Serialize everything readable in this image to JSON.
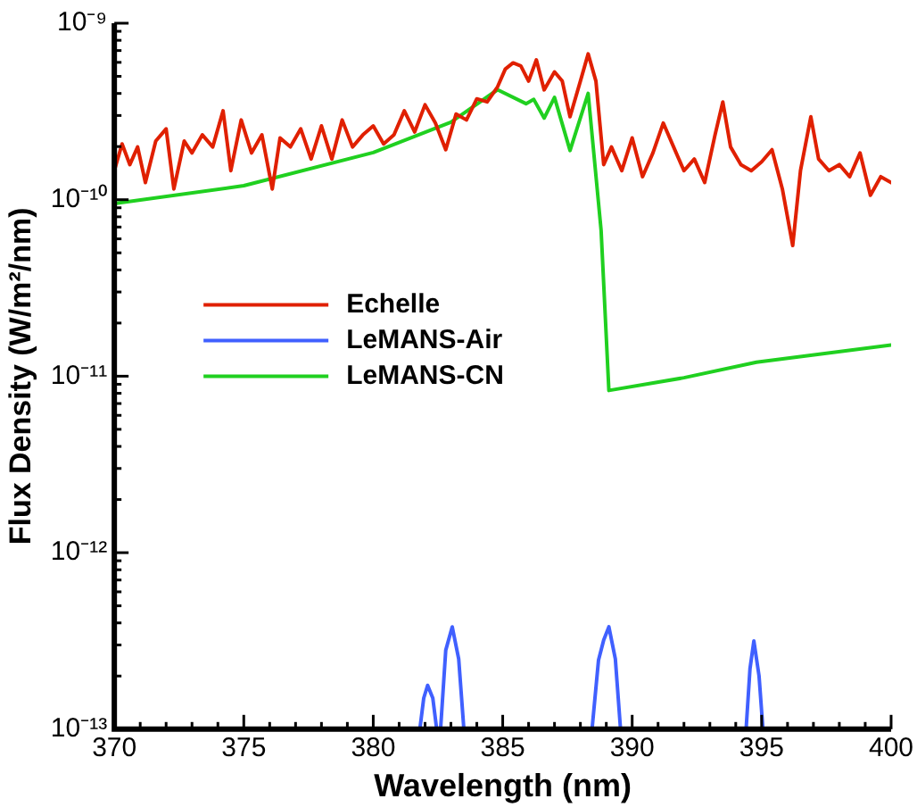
{
  "chart_data": {
    "type": "line",
    "xlabel": "Wavelength (nm)",
    "ylabel": "Flux Density (W/m²/nm)",
    "log": "y",
    "grid": false,
    "legend": "center left",
    "marker": "none",
    "line_style": "solid",
    "xlim": [
      370,
      400
    ],
    "xticks": [
      370,
      {
        "value": 371,
        "label": null
      },
      {
        "value": 372,
        "label": null
      },
      {
        "value": 373,
        "label": null
      },
      {
        "value": 374,
        "label": null
      },
      375,
      {
        "value": 376,
        "label": null
      },
      {
        "value": 377,
        "label": null
      },
      {
        "value": 378,
        "label": null
      },
      {
        "value": 379,
        "label": null
      },
      380,
      {
        "value": 381,
        "label": null
      },
      {
        "value": 382,
        "label": null
      },
      {
        "value": 383,
        "label": null
      },
      {
        "value": 384,
        "label": null
      },
      385,
      {
        "value": 386,
        "label": null
      },
      {
        "value": 387,
        "label": null
      },
      {
        "value": 388,
        "label": null
      },
      {
        "value": 389,
        "label": null
      },
      390,
      {
        "value": 391,
        "label": null
      },
      {
        "value": 392,
        "label": null
      },
      {
        "value": 393,
        "label": null
      },
      {
        "value": 394,
        "label": null
      },
      395,
      {
        "value": 396,
        "label": null
      },
      {
        "value": 397,
        "label": null
      },
      {
        "value": 398,
        "label": null
      },
      {
        "value": 399,
        "label": null
      },
      400
    ],
    "ylim": [
      1e-13,
      1e-09
    ],
    "yticks": [
      {
        "value": 1e-13,
        "label": "10⁻¹³"
      },
      {
        "value": 2e-13,
        "label": null
      },
      {
        "value": 3e-13,
        "label": null
      },
      {
        "value": 4e-13,
        "label": null
      },
      {
        "value": 5e-13,
        "label": null
      },
      {
        "value": 6e-13,
        "label": null
      },
      {
        "value": 7e-13,
        "label": null
      },
      {
        "value": 8e-13,
        "label": null
      },
      {
        "value": 9e-13,
        "label": null
      },
      {
        "value": 1e-12,
        "label": "10⁻¹²"
      },
      {
        "value": 2e-12,
        "label": null
      },
      {
        "value": 3e-12,
        "label": null
      },
      {
        "value": 4e-12,
        "label": null
      },
      {
        "value": 5e-12,
        "label": null
      },
      {
        "value": 6e-12,
        "label": null
      },
      {
        "value": 7e-12,
        "label": null
      },
      {
        "value": 8e-12,
        "label": null
      },
      {
        "value": 9e-12,
        "label": null
      },
      {
        "value": 1e-11,
        "label": "10⁻¹¹"
      },
      {
        "value": 2e-11,
        "label": null
      },
      {
        "value": 3e-11,
        "label": null
      },
      {
        "value": 4e-11,
        "label": null
      },
      {
        "value": 5e-11,
        "label": null
      },
      {
        "value": 6e-11,
        "label": null
      },
      {
        "value": 7e-11,
        "label": null
      },
      {
        "value": 8e-11,
        "label": null
      },
      {
        "value": 9e-11,
        "label": null
      },
      {
        "value": 1e-10,
        "label": "10⁻¹⁰"
      },
      {
        "value": 2e-10,
        "label": null
      },
      {
        "value": 3e-10,
        "label": null
      },
      {
        "value": 4e-10,
        "label": null
      },
      {
        "value": 5e-10,
        "label": null
      },
      {
        "value": 6e-10,
        "label": null
      },
      {
        "value": 7e-10,
        "label": null
      },
      {
        "value": 8e-10,
        "label": null
      },
      {
        "value": 9e-10,
        "label": null
      },
      {
        "value": 1e-09,
        "label": "10⁻⁹"
      }
    ],
    "series": [
      {
        "name": "Echelle",
        "color": "#e02000",
        "x": [
          370,
          370.3,
          370.6,
          370.9,
          371.2,
          371.6,
          372,
          372.3,
          372.7,
          373,
          373.4,
          373.8,
          374.2,
          374.5,
          374.9,
          375.3,
          375.7,
          376.1,
          376.4,
          376.8,
          377.2,
          377.6,
          378,
          378.4,
          378.8,
          379.2,
          379.6,
          380,
          380.4,
          380.8,
          381.2,
          381.6,
          382,
          382.4,
          382.8,
          383.2,
          383.6,
          384,
          384.4,
          384.8,
          385.1,
          385.4,
          385.7,
          386,
          386.3,
          386.6,
          387,
          387.3,
          387.6,
          388,
          388.3,
          388.6,
          388.9,
          389.2,
          389.6,
          390,
          390.4,
          390.8,
          391.2,
          391.6,
          392,
          392.4,
          392.8,
          393.2,
          393.5,
          393.8,
          394.2,
          394.6,
          395,
          395.4,
          395.8,
          396.2,
          396.5,
          396.9,
          397.2,
          397.6,
          398,
          398.4,
          398.8,
          399.2,
          399.6,
          400
        ],
        "values": [
          1.46e-10,
          2.07e-10,
          1.58e-10,
          1.99e-10,
          1.25e-10,
          2.15e-10,
          2.52e-10,
          1.15e-10,
          2.15e-10,
          1.84e-10,
          2.33e-10,
          1.99e-10,
          3.19e-10,
          1.46e-10,
          2.83e-10,
          1.84e-10,
          2.33e-10,
          1.15e-10,
          2.24e-10,
          1.99e-10,
          2.52e-10,
          1.7e-10,
          2.62e-10,
          1.7e-10,
          2.83e-10,
          1.99e-10,
          2.33e-10,
          2.62e-10,
          2.07e-10,
          2.33e-10,
          3.19e-10,
          2.42e-10,
          3.45e-10,
          2.72e-10,
          1.92e-10,
          3.06e-10,
          2.83e-10,
          3.73e-10,
          3.58e-10,
          4.36e-10,
          5.5e-10,
          5.96e-10,
          5.73e-10,
          4.7e-10,
          6.2e-10,
          4.19e-10,
          5.3e-10,
          4.7e-10,
          2.95e-10,
          4.7e-10,
          6.7e-10,
          4.7e-10,
          1.58e-10,
          1.99e-10,
          1.46e-10,
          2.24e-10,
          1.35e-10,
          1.84e-10,
          2.72e-10,
          1.99e-10,
          1.46e-10,
          1.7e-10,
          1.25e-10,
          2.33e-10,
          3.58e-10,
          1.99e-10,
          1.58e-10,
          1.46e-10,
          1.64e-10,
          1.92e-10,
          1.15e-10,
          5.5e-11,
          1.46e-10,
          2.95e-10,
          1.7e-10,
          1.46e-10,
          1.58e-10,
          1.35e-10,
          1.84e-10,
          1.06e-10,
          1.35e-10,
          1.25e-10
        ]
      },
      {
        "name": "LeMANS-Air",
        "color": "#4060ff",
        "x": [
          381.8,
          381.95,
          382.1,
          382.3,
          382.45,
          382.52,
          382.6,
          382.8,
          383.05,
          383.3,
          383.5,
          385,
          388.45,
          388.7,
          388.9,
          389.1,
          389.35,
          389.55,
          392,
          394.4,
          394.55,
          394.7,
          394.9,
          395.05
        ],
        "values": [
          1e-13,
          1.5e-13,
          1.77e-13,
          1.5e-13,
          1e-13,
          null,
          1e-13,
          2.8e-13,
          3.8e-13,
          2.5e-13,
          1e-13,
          null,
          1e-13,
          2.46e-13,
          3.2e-13,
          3.8e-13,
          2.5e-13,
          1e-13,
          null,
          1e-13,
          2.2e-13,
          3.16e-13,
          2e-13,
          1e-13
        ]
      },
      {
        "name": "LeMANS-CN",
        "color": "#20d020",
        "x": [
          370,
          375,
          380,
          383,
          384.8,
          385.9,
          386.2,
          386.6,
          387,
          387.6,
          388.3,
          388.8,
          389.1,
          392,
          394.8,
          400
        ],
        "values": [
          9.5e-11,
          1.2e-10,
          1.85e-10,
          2.75e-10,
          4.2e-10,
          3.5e-10,
          3.7e-10,
          2.9e-10,
          3.8e-10,
          1.9e-10,
          4e-10,
          6.7e-11,
          8.3e-12,
          9.8e-12,
          1.2e-11,
          1.5e-11
        ]
      }
    ]
  }
}
